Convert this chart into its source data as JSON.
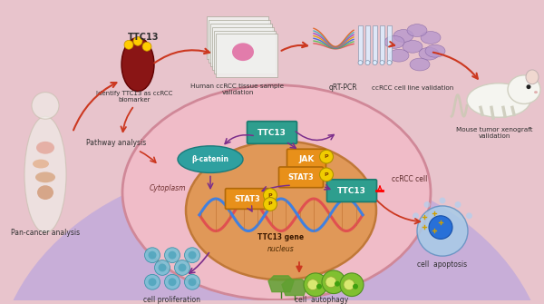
{
  "bg": "#e8c4cc",
  "purple_bg": "#c8aed8",
  "cell_outer": "#f0bcc8",
  "cell_border": "#d08898",
  "cytoplasm_fill": "#f0c8c0",
  "nucleus_fill": "#e09858",
  "nucleus_border": "#c07838",
  "labels": {
    "pan_cancer": "Pan-cancer analysis",
    "identify": "Identify TTC13 as ccRCC\nbiomarker",
    "ttc13_top": "TTC13",
    "human_tissue": "Human ccRCC tissue sample\nvalidation",
    "qrt_pcr": "qRT-PCR",
    "ccrcc_line": "ccRCC cell line validation",
    "mouse_tumor": "Mouse tumor xenograft\nvalidation",
    "pathway": "Pathway analysis",
    "cytoplasm": "Cytoplasm",
    "nucleus": "nucleus",
    "ttc13_gene": "TTC13 gene",
    "ccrcc_cell": "ccRCC cell",
    "cell_apoptosis": "cell  apoptosis",
    "cell_autophagy": "cell  autophagy",
    "cell_proliferation": "cell proliferation",
    "beta_catenin": "β-catenin",
    "jak": "JAK",
    "stat3": "STAT3",
    "ttc13_inner": "TTC13"
  },
  "colors": {
    "arrow_red": "#cc3820",
    "arrow_purple": "#7b2d8b",
    "ttc13_box": "#2e9e8e",
    "jak_box": "#e8901a",
    "stat3_box": "#e8901a",
    "beta_box": "#2ea0a0",
    "p_yellow": "#f0cc00",
    "dna_red": "#e05050",
    "dna_blue": "#4080e0"
  }
}
